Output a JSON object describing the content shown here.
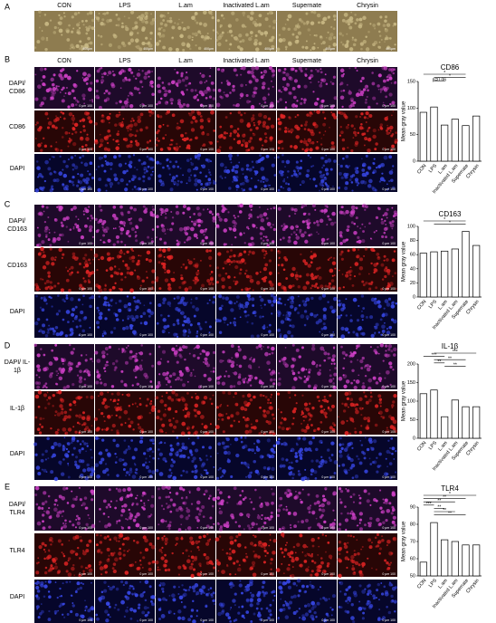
{
  "panels": [
    {
      "label": "A",
      "columns": [
        "CON",
        "LPS",
        "L.am",
        "Inactivated L.am",
        "Supernate",
        "Chrysin"
      ],
      "scale_label": "400μm"
    },
    {
      "label": "B",
      "columns": [
        "CON",
        "LPS",
        "L.am",
        "Inactivated L.am",
        "Supernate",
        "Chrysin"
      ],
      "rows": [
        "DAPI/ CD86",
        "CD86",
        "DAPI"
      ],
      "scale_label": "0 μm 100"
    },
    {
      "label": "C",
      "rows": [
        "DAPI/ CD163",
        "CD163",
        "DAPI"
      ],
      "scale_label": "0 μm 100"
    },
    {
      "label": "D",
      "rows": [
        "DAPI/ IL-1β",
        "IL-1β",
        "DAPI"
      ],
      "scale_label": "0 μm 100"
    },
    {
      "label": "E",
      "rows": [
        "DAPI/ TLR4",
        "TLR4",
        "DAPI"
      ],
      "scale_label": "0 μm 100"
    }
  ],
  "chart_data": [
    {
      "type": "bar",
      "title": "CD86",
      "y_label": "Mean gray value",
      "categories": [
        "CON",
        "LPS",
        "L.am",
        "Inactivated L.am",
        "Supernate",
        "Chrysin"
      ],
      "values": [
        92,
        102,
        68,
        79,
        67,
        85
      ],
      "color": "#ffffff",
      "ylim": [
        0,
        150
      ],
      "yticks": [
        0,
        50,
        100,
        150
      ],
      "annotations": [
        "*",
        "*",
        "p=0.06"
      ]
    },
    {
      "type": "bar",
      "title": "CD163",
      "y_label": "Mean gray value",
      "categories": [
        "CON",
        "LPS",
        "L.am",
        "Inactivated L.am",
        "Supernate",
        "Chrysin"
      ],
      "values": [
        62,
        64,
        65,
        68,
        93,
        73
      ],
      "color": "#ffffff",
      "ylim": [
        0,
        100
      ],
      "yticks": [
        0,
        20,
        40,
        60,
        80,
        100
      ],
      "annotations": [
        "*",
        "*"
      ]
    },
    {
      "type": "bar",
      "title": "IL-1β",
      "y_label": "Mean gray value",
      "categories": [
        "CON",
        "LPS",
        "L.am",
        "Inactivated L.am",
        "Supernate",
        "Chrysin"
      ],
      "values": [
        120,
        130,
        58,
        103,
        85,
        85
      ],
      "color": "#ffffff",
      "ylim": [
        0,
        200
      ],
      "yticks": [
        0,
        50,
        100,
        150,
        200
      ],
      "annotations": [
        "***",
        "***",
        "**",
        "**",
        "**"
      ]
    },
    {
      "type": "bar",
      "title": "TLR4",
      "y_label": "Mean gray value",
      "categories": [
        "CON",
        "LPS",
        "L.am",
        "Inactivated L.am",
        "Supernate",
        "Chrysin"
      ],
      "values": [
        58,
        81,
        71,
        70,
        68,
        68
      ],
      "color": "#ffffff",
      "ylim": [
        50,
        90
      ],
      "yticks": [
        50,
        60,
        70,
        80,
        90
      ],
      "annotations": [
        "*",
        "**",
        "**",
        "***",
        "**",
        "**",
        "**"
      ]
    }
  ]
}
